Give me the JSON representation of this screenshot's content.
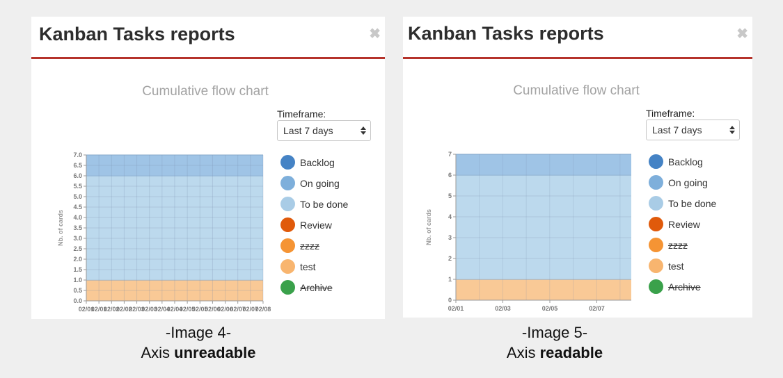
{
  "colors": {
    "backlog": "#4583c5",
    "on_going": "#7eafdb",
    "to_be_done": "#a9cce6",
    "review": "#e05a0b",
    "zzzz": "#f59434",
    "test": "#f8b56f",
    "archive": "#3aa14b",
    "header_border": "#b5332b"
  },
  "panels": [
    {
      "title": "Kanban Tasks reports",
      "chart_title": "Cumulative flow chart",
      "timeframe_label": "Timeframe:",
      "timeframe_value": "Last 7 days",
      "legend": [
        {
          "label": "Backlog",
          "disabled": false
        },
        {
          "label": "On going",
          "disabled": false
        },
        {
          "label": "To be done",
          "disabled": false
        },
        {
          "label": "Review",
          "disabled": false
        },
        {
          "label": "zzzz",
          "disabled": true
        },
        {
          "label": "test",
          "disabled": false
        },
        {
          "label": "Archive",
          "disabled": true
        }
      ],
      "caption_line1": "-Image 4-",
      "caption_prefix": "Axis ",
      "caption_bold": "unreadable"
    },
    {
      "title": "Kanban Tasks reports",
      "chart_title": "Cumulative flow chart",
      "timeframe_label": "Timeframe:",
      "timeframe_value": "Last 7 days",
      "legend": [
        {
          "label": "Backlog",
          "disabled": false
        },
        {
          "label": "On going",
          "disabled": false
        },
        {
          "label": "To be done",
          "disabled": false
        },
        {
          "label": "Review",
          "disabled": false
        },
        {
          "label": "zzzz",
          "disabled": true
        },
        {
          "label": "test",
          "disabled": false
        },
        {
          "label": "Archive",
          "disabled": true
        }
      ],
      "caption_line1": "-Image 5-",
      "caption_prefix": "Axis ",
      "caption_bold": "readable"
    }
  ],
  "chart_data": [
    {
      "type": "area",
      "ylabel": "Nb. of cards",
      "ylim": [
        0,
        7
      ],
      "y_ticks": [
        "0.0",
        "0.5",
        "1.0",
        "1.5",
        "2.0",
        "2.5",
        "3.0",
        "3.5",
        "4.0",
        "4.5",
        "5.0",
        "5.5",
        "6.0",
        "6.5",
        "7.0"
      ],
      "x_ticks": [
        "02/01",
        "02/01",
        "02/02",
        "02/02",
        "02/03",
        "02/03",
        "02/04",
        "02/04",
        "02/05",
        "02/05",
        "02/06",
        "02/06",
        "02/07",
        "02/07",
        "02/08"
      ],
      "grid": true,
      "series": [
        {
          "name": "test",
          "values": [
            1,
            1
          ]
        },
        {
          "name": "To be done",
          "values": [
            5,
            5
          ]
        },
        {
          "name": "On going",
          "values": [
            1,
            1
          ]
        }
      ]
    },
    {
      "type": "area",
      "ylabel": "Nb. of cards",
      "ylim": [
        0,
        7
      ],
      "y_ticks": [
        "0",
        "1",
        "2",
        "3",
        "4",
        "5",
        "6",
        "7"
      ],
      "x_ticks": [
        "02/01",
        "02/03",
        "02/05",
        "02/07"
      ],
      "grid": true,
      "series": [
        {
          "name": "test",
          "values": [
            1,
            1
          ]
        },
        {
          "name": "To be done",
          "values": [
            5,
            5
          ]
        },
        {
          "name": "On going",
          "values": [
            1,
            1
          ]
        }
      ]
    }
  ]
}
